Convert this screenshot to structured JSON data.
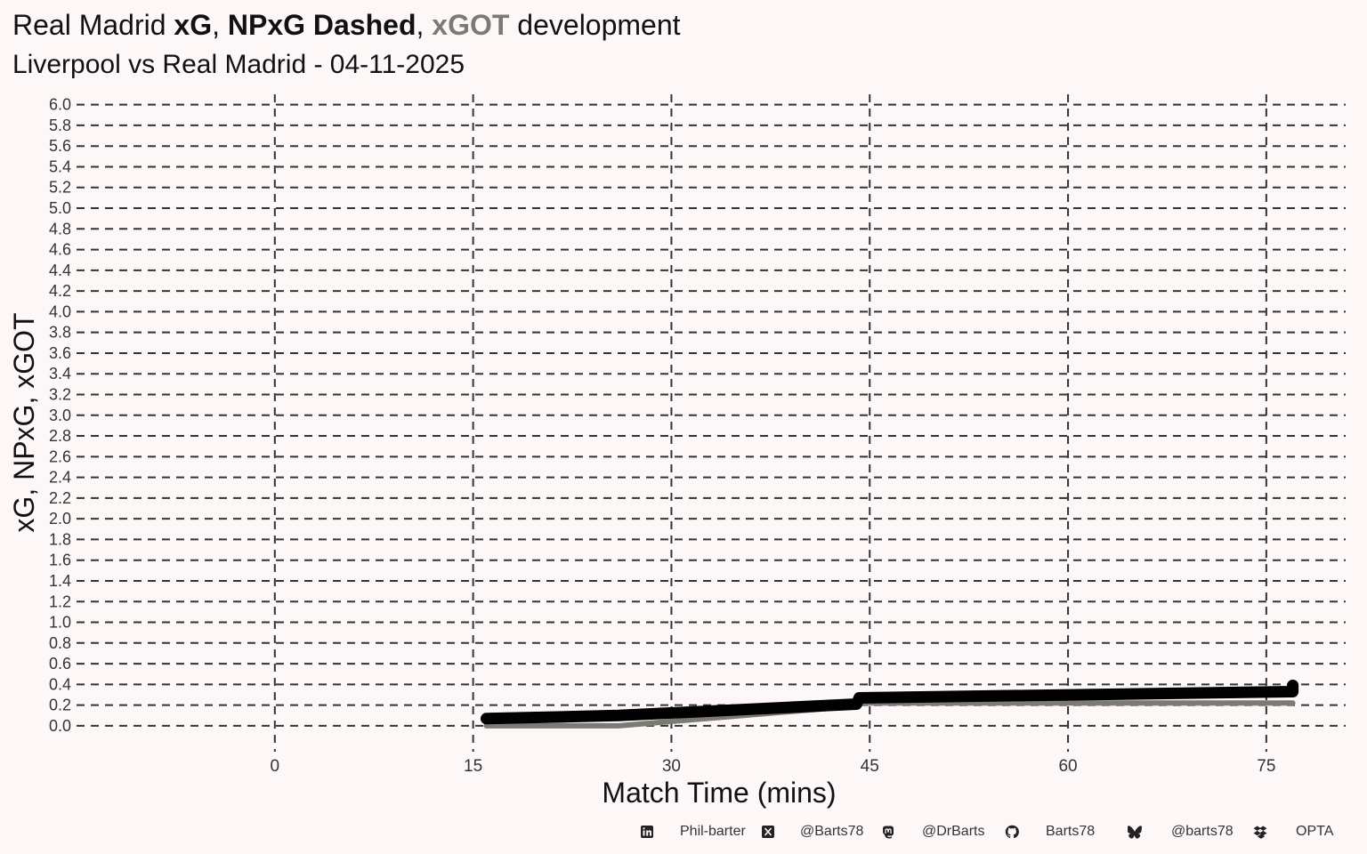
{
  "title": {
    "prefix": "Real Madrid ",
    "xg": "xG",
    "sep1": ", ",
    "npxg": "NPxG Dashed",
    "sep2": ", ",
    "xgot": "xGOT",
    "suffix": " development"
  },
  "subtitle": "Liverpool vs Real Madrid - 04-11-2025",
  "colors": {
    "background": "#fdf8f7",
    "xg": "#000000",
    "npxg": "#000000",
    "xgot": "#7b7a75",
    "grid": "#333333"
  },
  "chart_data": {
    "type": "line",
    "xlabel": "Match Time (mins)",
    "ylabel": "xG, NPxG, xGOT",
    "xlim": [
      -15,
      81
    ],
    "ylim": [
      -0.25,
      6.1
    ],
    "x_ticks": [
      0,
      15,
      30,
      45,
      60,
      75
    ],
    "y_ticks": [
      0.0,
      0.2,
      0.4,
      0.6,
      0.8,
      1.0,
      1.2,
      1.4,
      1.6,
      1.8,
      2.0,
      2.2,
      2.4,
      2.6,
      2.8,
      3.0,
      3.2,
      3.4,
      3.6,
      3.8,
      4.0,
      4.2,
      4.4,
      4.6,
      4.8,
      5.0,
      5.2,
      5.4,
      5.6,
      5.8,
      6.0
    ],
    "grid": true,
    "series": [
      {
        "name": "xG",
        "style": "thick",
        "x": [
          16,
          26,
          44,
          44.2,
          77,
          77
        ],
        "y": [
          0.07,
          0.1,
          0.21,
          0.27,
          0.33,
          0.39
        ]
      },
      {
        "name": "NPxG",
        "style": "dashed",
        "x": [
          16,
          26,
          44,
          44.2,
          77,
          77
        ],
        "y": [
          0.07,
          0.1,
          0.21,
          0.27,
          0.33,
          0.39
        ]
      },
      {
        "name": "xGOT",
        "style": "thin",
        "x": [
          16,
          26,
          44,
          44.2,
          77
        ],
        "y": [
          0.0,
          0.0,
          0.19,
          0.22,
          0.22
        ]
      }
    ]
  },
  "footer": {
    "items": [
      {
        "icon": "linkedin-icon",
        "label": "Phil-barter"
      },
      {
        "icon": "x-twitter-icon",
        "label": "@Barts78"
      },
      {
        "icon": "mastodon-icon",
        "label": "@DrBarts"
      },
      {
        "icon": "github-icon",
        "label": "Barts78"
      },
      {
        "icon": "bluesky-icon",
        "label": "@barts78"
      },
      {
        "icon": "dropbox-icon",
        "label": "OPTA"
      }
    ]
  }
}
